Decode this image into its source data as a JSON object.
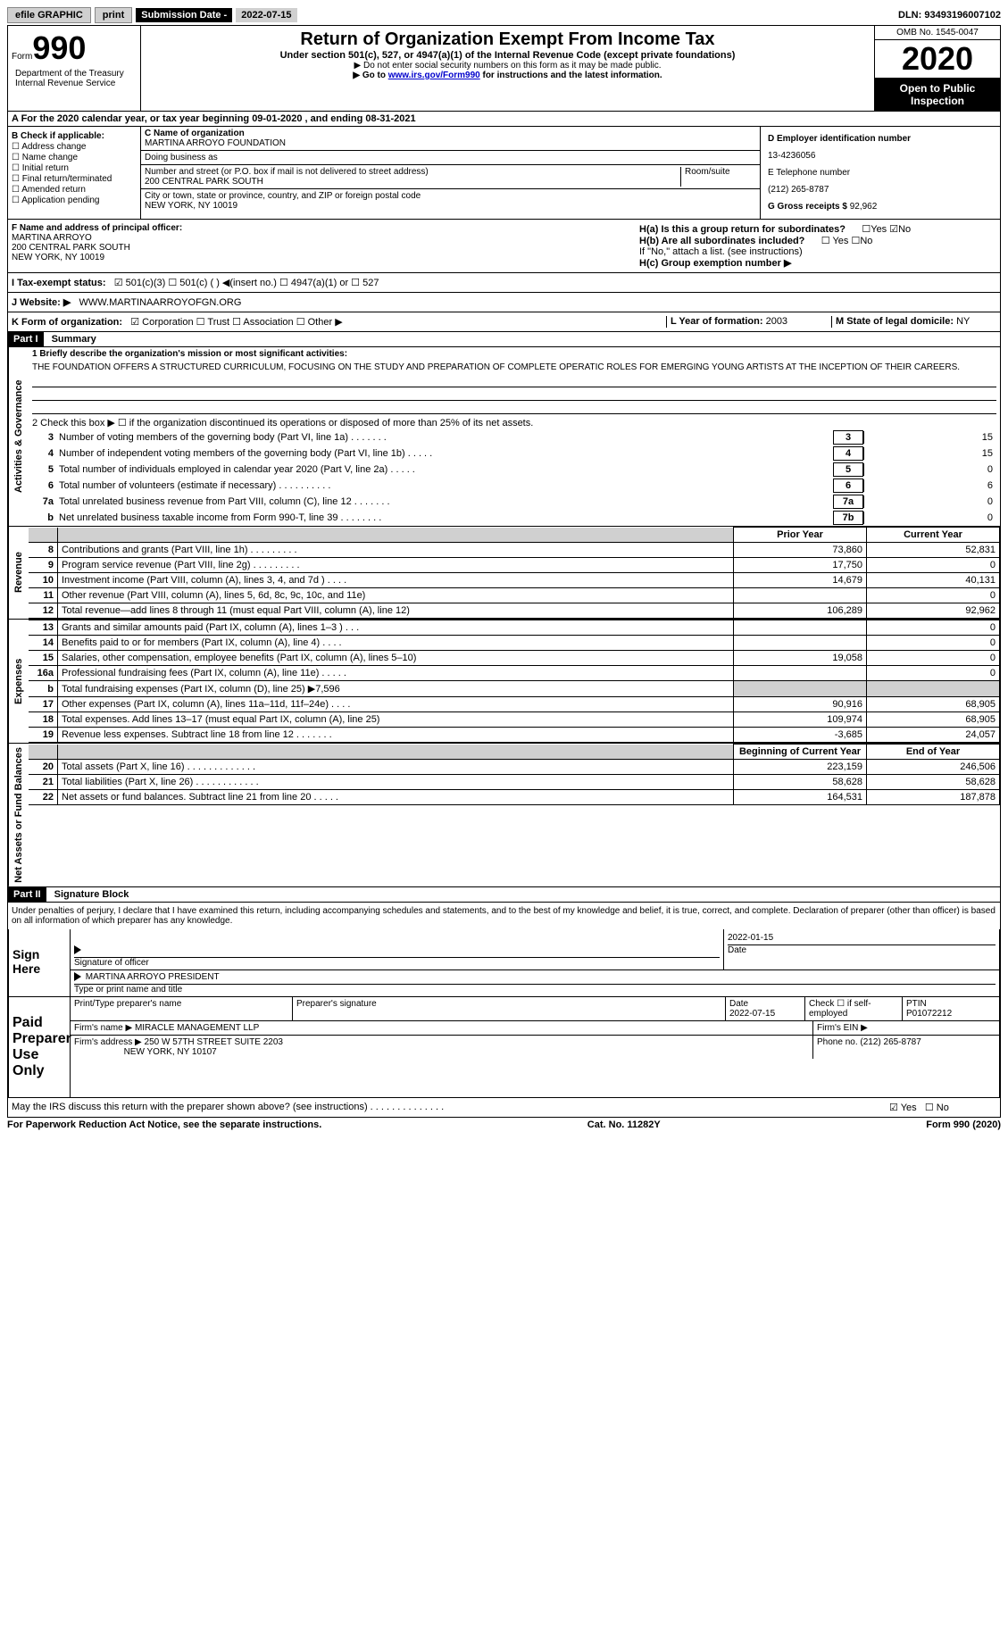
{
  "top": {
    "efile_btn": "efile GRAPHIC",
    "print_btn": "print",
    "sub_date_label": "Submission Date -",
    "sub_date": "2022-07-15",
    "dln_label": "DLN:",
    "dln": "93493196007102"
  },
  "header": {
    "form_label": "Form",
    "form_num": "990",
    "dept": "Department of the Treasury\nInternal Revenue Service",
    "title": "Return of Organization Exempt From Income Tax",
    "subtitle": "Under section 501(c), 527, or 4947(a)(1) of the Internal Revenue Code (except private foundations)",
    "note1": "▶ Do not enter social security numbers on this form as it may be made public.",
    "note2_pre": "▶ Go to ",
    "note2_link": "www.irs.gov/Form990",
    "note2_post": " for instructions and the latest information.",
    "omb": "OMB No. 1545-0047",
    "year": "2020",
    "open": "Open to Public Inspection"
  },
  "row_a": "A For the 2020 calendar year, or tax year beginning 09-01-2020    , and ending 08-31-2021",
  "b": {
    "label": "B Check if applicable:",
    "items": [
      "☐ Address change",
      "☐ Name change",
      "☐ Initial return",
      "☐ Final return/terminated",
      "☐ Amended return",
      "☐ Application pending"
    ]
  },
  "c": {
    "name_label": "C Name of organization",
    "name": "MARTINA ARROYO FOUNDATION",
    "dba_label": "Doing business as",
    "dba": "",
    "street_label": "Number and street (or P.O. box if mail is not delivered to street address)",
    "room_label": "Room/suite",
    "street": "200 CENTRAL PARK SOUTH",
    "city_label": "City or town, state or province, country, and ZIP or foreign postal code",
    "city": "NEW YORK, NY  10019"
  },
  "d": {
    "ein_label": "D Employer identification number",
    "ein": "13-4236056",
    "phone_label": "E Telephone number",
    "phone": "(212) 265-8787",
    "receipts_label": "G Gross receipts $",
    "receipts": "92,962"
  },
  "f": {
    "label": "F Name and address of principal officer:",
    "name": "MARTINA ARROYO",
    "addr1": "200 CENTRAL PARK SOUTH",
    "addr2": "NEW YORK, NY  10019"
  },
  "h": {
    "a_label": "H(a)  Is this a group return for subordinates?",
    "a_yes": "☐Yes",
    "a_no": "☑No",
    "b_label": "H(b)  Are all subordinates included?",
    "b_yes": "☐ Yes",
    "b_no": "☐No",
    "b_note": "If \"No,\" attach a list. (see instructions)",
    "c_label": "H(c)  Group exemption number ▶"
  },
  "i": {
    "label": "I   Tax-exempt status:",
    "opts": "☑ 501(c)(3)    ☐ 501(c) (  ) ◀(insert no.)    ☐ 4947(a)(1) or   ☐ 527"
  },
  "j": {
    "label": "J   Website: ▶",
    "value": "WWW.MARTINAARROYOFGN.ORG"
  },
  "k": {
    "label": "K Form of organization:",
    "opts": "☑ Corporation  ☐ Trust  ☐ Association  ☐ Other ▶",
    "l_label": "L Year of formation:",
    "l_val": "2003",
    "m_label": "M State of legal domicile:",
    "m_val": "NY"
  },
  "part1": {
    "header": "Part I",
    "title": "Summary",
    "line1_label": "1   Briefly describe the organization's mission or most significant activities:",
    "mission": "THE FOUNDATION OFFERS A STRUCTURED CURRICULUM, FOCUSING ON THE STUDY AND PREPARATION OF COMPLETE OPERATIC ROLES FOR EMERGING YOUNG ARTISTS AT THE INCEPTION OF THEIR CAREERS.",
    "line2": "2   Check this box ▶ ☐  if the organization discontinued its operations or disposed of more than 25% of its net assets.",
    "vert_gov": "Activities & Governance",
    "vert_rev": "Revenue",
    "vert_exp": "Expenses",
    "vert_net": "Net Assets or Fund Balances",
    "lines_gov": [
      {
        "n": "3",
        "t": "Number of voting members of the governing body (Part VI, line 1a)  .    .    .    .    .    .    .",
        "box": "3",
        "v": "15"
      },
      {
        "n": "4",
        "t": "Number of independent voting members of the governing body (Part VI, line 1b)  .    .    .    .    .",
        "box": "4",
        "v": "15"
      },
      {
        "n": "5",
        "t": "Total number of individuals employed in calendar year 2020 (Part V, line 2a)  .    .    .    .    .",
        "box": "5",
        "v": "0"
      },
      {
        "n": "6",
        "t": "Total number of volunteers (estimate if necessary)  .    .    .    .    .    .    .    .    .    .",
        "box": "6",
        "v": "6"
      },
      {
        "n": "7a",
        "t": "Total unrelated business revenue from Part VIII, column (C), line 12  .    .    .    .    .    .    .",
        "box": "7a",
        "v": "0"
      },
      {
        "n": "b",
        "t": "Net unrelated business taxable income from Form 990-T, line 39  .    .    .    .    .    .    .    .",
        "box": "7b",
        "v": "0"
      }
    ],
    "prior_label": "Prior Year",
    "current_label": "Current Year",
    "boc_label": "Beginning of Current Year",
    "eoy_label": "End of Year",
    "lines_rev": [
      {
        "n": "8",
        "t": "Contributions and grants (Part VIII, line 1h)  .    .    .    .    .    .    .    .    .",
        "p": "73,860",
        "c": "52,831"
      },
      {
        "n": "9",
        "t": "Program service revenue (Part VIII, line 2g)  .    .    .    .    .    .    .    .    .",
        "p": "17,750",
        "c": "0"
      },
      {
        "n": "10",
        "t": "Investment income (Part VIII, column (A), lines 3, 4, and 7d )  .    .    .    .",
        "p": "14,679",
        "c": "40,131"
      },
      {
        "n": "11",
        "t": "Other revenue (Part VIII, column (A), lines 5, 6d, 8c, 9c, 10c, and 11e)",
        "p": "",
        "c": "0"
      },
      {
        "n": "12",
        "t": "Total revenue—add lines 8 through 11 (must equal Part VIII, column (A), line 12)",
        "p": "106,289",
        "c": "92,962"
      }
    ],
    "lines_exp": [
      {
        "n": "13",
        "t": "Grants and similar amounts paid (Part IX, column (A), lines 1–3 )  .    .    .",
        "p": "",
        "c": "0"
      },
      {
        "n": "14",
        "t": "Benefits paid to or for members (Part IX, column (A), line 4)  .    .    .    .",
        "p": "",
        "c": "0"
      },
      {
        "n": "15",
        "t": "Salaries, other compensation, employee benefits (Part IX, column (A), lines 5–10)",
        "p": "19,058",
        "c": "0"
      },
      {
        "n": "16a",
        "t": "Professional fundraising fees (Part IX, column (A), line 11e)  .    .    .    .    .",
        "p": "",
        "c": "0"
      },
      {
        "n": "b",
        "t": "Total fundraising expenses (Part IX, column (D), line 25) ▶7,596",
        "p": "shaded",
        "c": "shaded"
      },
      {
        "n": "17",
        "t": "Other expenses (Part IX, column (A), lines 11a–11d, 11f–24e)  .    .    .    .",
        "p": "90,916",
        "c": "68,905"
      },
      {
        "n": "18",
        "t": "Total expenses. Add lines 13–17 (must equal Part IX, column (A), line 25)",
        "p": "109,974",
        "c": "68,905"
      },
      {
        "n": "19",
        "t": "Revenue less expenses. Subtract line 18 from line 12  .    .    .    .    .    .    .",
        "p": "-3,685",
        "c": "24,057"
      }
    ],
    "lines_net": [
      {
        "n": "20",
        "t": "Total assets (Part X, line 16)  .    .    .    .    .    .    .    .    .    .    .    .    .",
        "p": "223,159",
        "c": "246,506"
      },
      {
        "n": "21",
        "t": "Total liabilities (Part X, line 26)  .    .    .    .    .    .    .    .    .    .    .    .",
        "p": "58,628",
        "c": "58,628"
      },
      {
        "n": "22",
        "t": "Net assets or fund balances. Subtract line 21 from line 20  .    .    .    .    .",
        "p": "164,531",
        "c": "187,878"
      }
    ]
  },
  "part2": {
    "header": "Part II",
    "title": "Signature Block",
    "penalty": "Under penalties of perjury, I declare that I have examined this return, including accompanying schedules and statements, and to the best of my knowledge and belief, it is true, correct, and complete. Declaration of preparer (other than officer) is based on all information of which preparer has any knowledge.",
    "sign_here": "Sign Here",
    "sig_officer": "Signature of officer",
    "sig_date": "2022-01-15",
    "date_label": "Date",
    "officer_name": "MARTINA ARROYO  PRESIDENT",
    "type_name": "Type or print name and title",
    "paid_label": "Paid Preparer Use Only",
    "prep_name_label": "Print/Type preparer's name",
    "prep_sig_label": "Preparer's signature",
    "prep_date_label": "Date",
    "prep_date": "2022-07-15",
    "check_if": "Check ☐ if self-employed",
    "ptin_label": "PTIN",
    "ptin": "P01072212",
    "firm_name_label": "Firm's name    ▶",
    "firm_name": "MIRACLE MANAGEMENT LLP",
    "firm_ein_label": "Firm's EIN ▶",
    "firm_addr_label": "Firm's address ▶",
    "firm_addr": "250 W 57TH STREET SUITE 2203",
    "firm_city": "NEW YORK, NY  10107",
    "firm_phone_label": "Phone no.",
    "firm_phone": "(212) 265-8787",
    "discuss": "May the IRS discuss this return with the preparer shown above? (see instructions)  .    .    .    .    .    .    .    .    .    .    .    .    .    .",
    "discuss_yes": "☑ Yes",
    "discuss_no": "☐ No"
  },
  "footer": {
    "left": "For Paperwork Reduction Act Notice, see the separate instructions.",
    "mid": "Cat. No. 11282Y",
    "right": "Form 990 (2020)"
  }
}
